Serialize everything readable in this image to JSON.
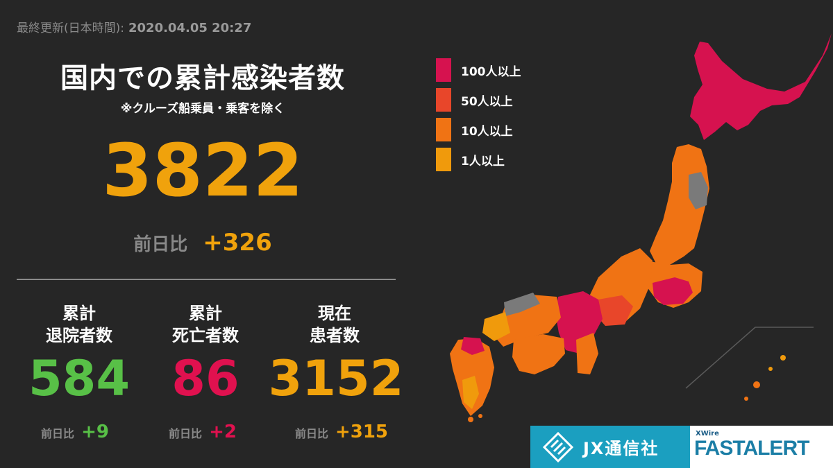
{
  "updated": {
    "label": "最終更新(日本時間):",
    "timestamp": "2020.04.05 20:27"
  },
  "title": "国内での累計感染者数",
  "subtitle": "※クルーズ船乗員・乗客を除く",
  "total": {
    "value": "3822",
    "diff_label": "前日比",
    "diff_value": "+326",
    "color": "#f0a20c"
  },
  "stats": [
    {
      "head1": "累計",
      "head2": "退院者数",
      "value": "584",
      "diff_label": "前日比",
      "diff_value": "+9",
      "color": "#58c047"
    },
    {
      "head1": "累計",
      "head2": "死亡者数",
      "value": "86",
      "diff_label": "前日比",
      "diff_value": "+2",
      "color": "#e0114f"
    },
    {
      "head1": "現在",
      "head2": "患者数",
      "value": "3152",
      "diff_label": "前日比",
      "diff_value": "+315",
      "color": "#f0a20c"
    }
  ],
  "legend": [
    {
      "label": "100人以上",
      "color": "#d6124f"
    },
    {
      "label": "50人以上",
      "color": "#e8462a"
    },
    {
      "label": "10人以上",
      "color": "#f07314"
    },
    {
      "label": "1人以上",
      "color": "#f09a0c"
    }
  ],
  "map_colors": {
    "none": "#7a7a7a"
  },
  "logos": {
    "jx": "JX通信社",
    "xwire": "XWire",
    "fastalert": "FASTALERT"
  }
}
